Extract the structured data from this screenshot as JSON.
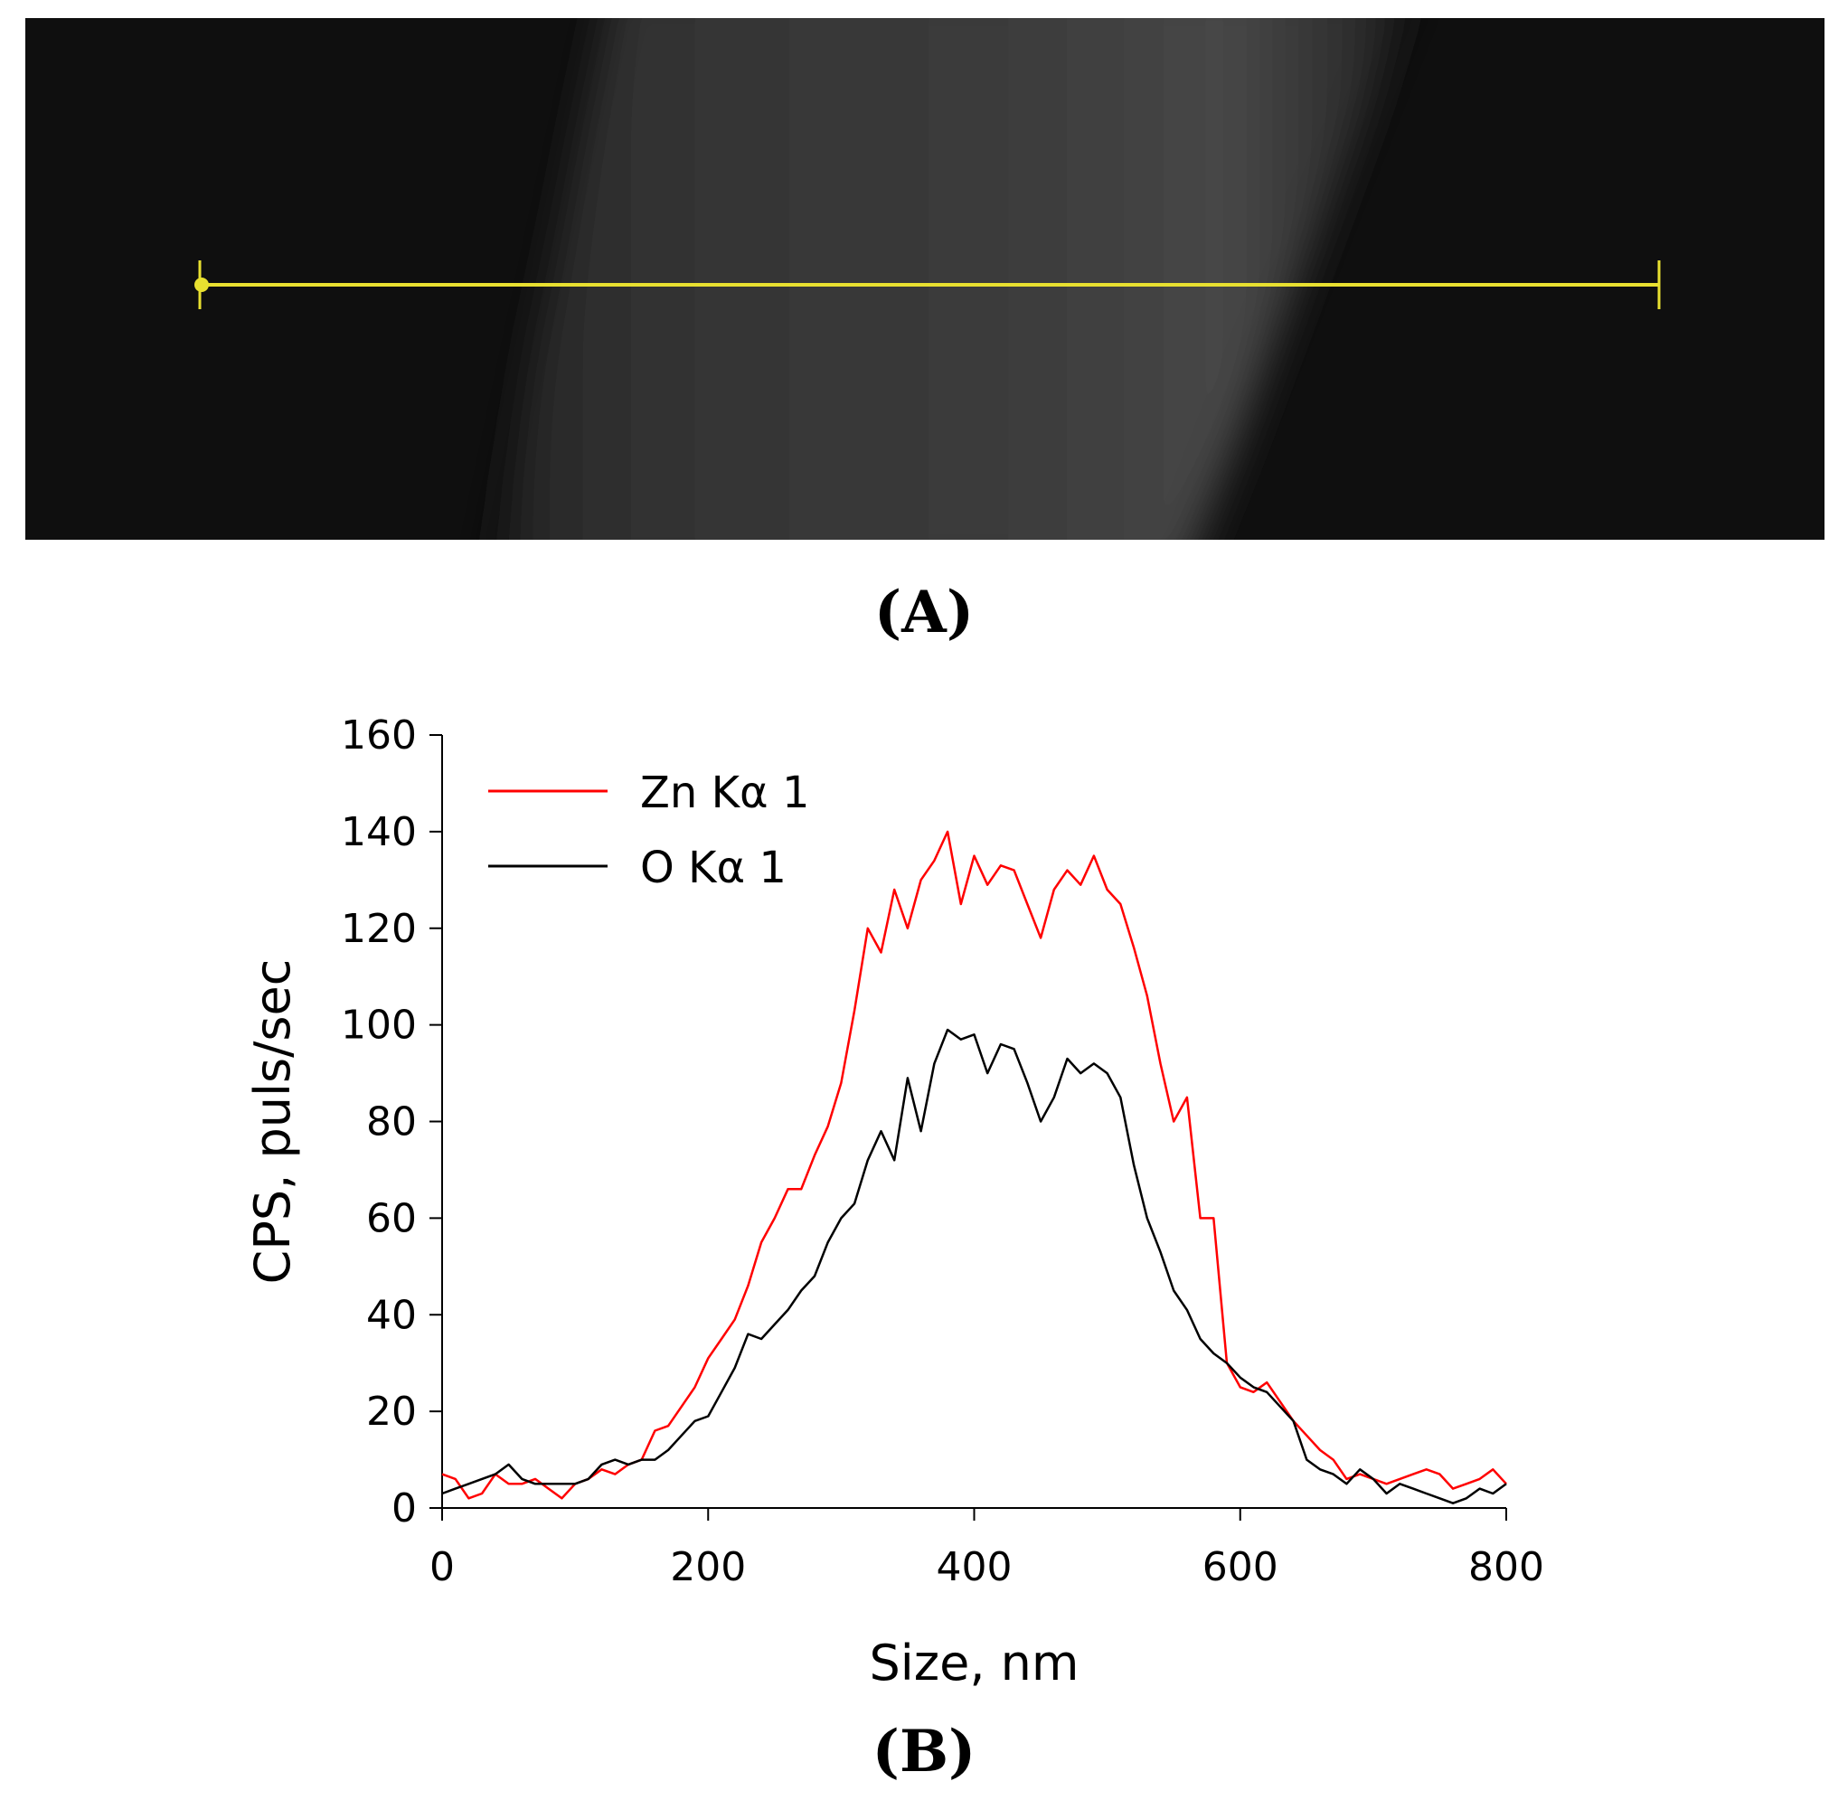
{
  "panel_a": {
    "label_open": "(",
    "label_letter": "A",
    "label_close": ")",
    "line_color": "#e8e030"
  },
  "panel_b": {
    "label_open": "(",
    "label_letter": "B",
    "label_close": ")"
  },
  "chart_data": {
    "type": "line",
    "title": "",
    "xlabel": "Size, nm",
    "ylabel": "CPS, puls/sec",
    "xlim": [
      0,
      800
    ],
    "ylim": [
      0,
      160
    ],
    "xticks": [
      0,
      200,
      400,
      600,
      800
    ],
    "yticks": [
      0,
      20,
      40,
      60,
      80,
      100,
      120,
      140,
      160
    ],
    "legend_position": "top-left",
    "series": [
      {
        "name": "Zn Kα 1",
        "color": "#ff0000",
        "x": [
          0,
          10,
          20,
          30,
          40,
          50,
          60,
          70,
          80,
          90,
          100,
          110,
          120,
          130,
          140,
          150,
          160,
          170,
          180,
          190,
          200,
          210,
          220,
          230,
          240,
          250,
          260,
          270,
          280,
          290,
          300,
          310,
          320,
          330,
          340,
          350,
          360,
          370,
          380,
          390,
          400,
          410,
          420,
          430,
          440,
          450,
          460,
          470,
          480,
          490,
          500,
          510,
          520,
          530,
          540,
          550,
          560,
          570,
          580,
          590,
          600,
          610,
          620,
          630,
          640,
          650,
          660,
          670,
          680,
          690,
          700,
          710,
          720,
          730,
          740,
          750,
          760,
          770,
          780,
          790,
          800
        ],
        "y": [
          7,
          6,
          2,
          3,
          7,
          5,
          5,
          6,
          4,
          2,
          5,
          6,
          8,
          7,
          9,
          10,
          16,
          17,
          21,
          25,
          31,
          35,
          39,
          46,
          55,
          60,
          66,
          66,
          73,
          79,
          88,
          103,
          120,
          115,
          128,
          120,
          130,
          134,
          140,
          125,
          135,
          129,
          133,
          132,
          125,
          118,
          128,
          132,
          129,
          135,
          128,
          125,
          116,
          106,
          92,
          80,
          85,
          60,
          60,
          30,
          25,
          24,
          26,
          22,
          18,
          15,
          12,
          10,
          6,
          7,
          6,
          5,
          6,
          7,
          8,
          7,
          4,
          5,
          6,
          8,
          5
        ]
      },
      {
        "name": "O Kα 1",
        "color": "#000000",
        "x": [
          0,
          10,
          20,
          30,
          40,
          50,
          60,
          70,
          80,
          90,
          100,
          110,
          120,
          130,
          140,
          150,
          160,
          170,
          180,
          190,
          200,
          210,
          220,
          230,
          240,
          250,
          260,
          270,
          280,
          290,
          300,
          310,
          320,
          330,
          340,
          350,
          360,
          370,
          380,
          390,
          400,
          410,
          420,
          430,
          440,
          450,
          460,
          470,
          480,
          490,
          500,
          510,
          520,
          530,
          540,
          550,
          560,
          570,
          580,
          590,
          600,
          610,
          620,
          630,
          640,
          650,
          660,
          670,
          680,
          690,
          700,
          710,
          720,
          730,
          740,
          750,
          760,
          770,
          780,
          790,
          800
        ],
        "y": [
          3,
          4,
          5,
          6,
          7,
          9,
          6,
          5,
          5,
          5,
          5,
          6,
          9,
          10,
          9,
          10,
          10,
          12,
          15,
          18,
          19,
          24,
          29,
          36,
          35,
          38,
          41,
          45,
          48,
          55,
          60,
          63,
          72,
          78,
          72,
          89,
          78,
          92,
          99,
          97,
          98,
          90,
          96,
          95,
          88,
          80,
          85,
          93,
          90,
          92,
          90,
          85,
          71,
          60,
          53,
          45,
          41,
          35,
          32,
          30,
          27,
          25,
          24,
          21,
          18,
          10,
          8,
          7,
          5,
          8,
          6,
          3,
          5,
          4,
          3,
          2,
          1,
          2,
          4,
          3,
          5
        ]
      }
    ]
  }
}
